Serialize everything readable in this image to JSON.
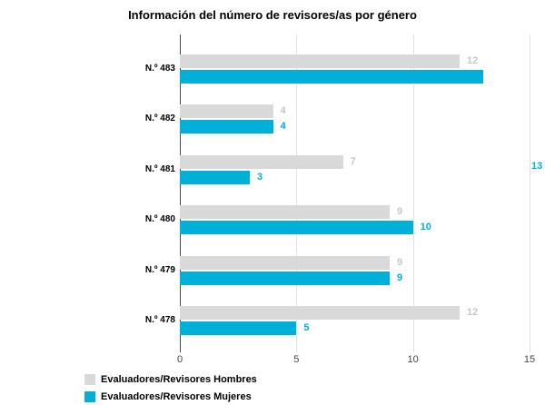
{
  "chart_data": {
    "type": "bar",
    "orientation": "horizontal",
    "title": "Información del número de revisores/as por género",
    "categories": [
      "N.º 483",
      "N.º 482",
      "N.º 481",
      "N.º 480",
      "N.º 479",
      "N.º 478"
    ],
    "series": [
      {
        "name": "Evaluadores/Revisores Hombres",
        "color": "#d9d9d9",
        "label_color": "#c6c6c6",
        "values": [
          12,
          4,
          7,
          9,
          9,
          12
        ]
      },
      {
        "name": "Evaluadores/Revisores Mujeres",
        "color": "#00b0d8",
        "label_color": "#00b0d8",
        "values": [
          13,
          4,
          3,
          10,
          9,
          5
        ]
      }
    ],
    "x_axis": {
      "min": 0,
      "max": 15,
      "ticks": [
        0,
        5,
        10,
        15
      ]
    },
    "grid": true,
    "legend_position": "bottom-left",
    "edge_annotation": {
      "text": "13",
      "series": "Evaluadores/Revisores Mujeres",
      "category": "N.º 483",
      "color": "#00b0d8"
    }
  }
}
